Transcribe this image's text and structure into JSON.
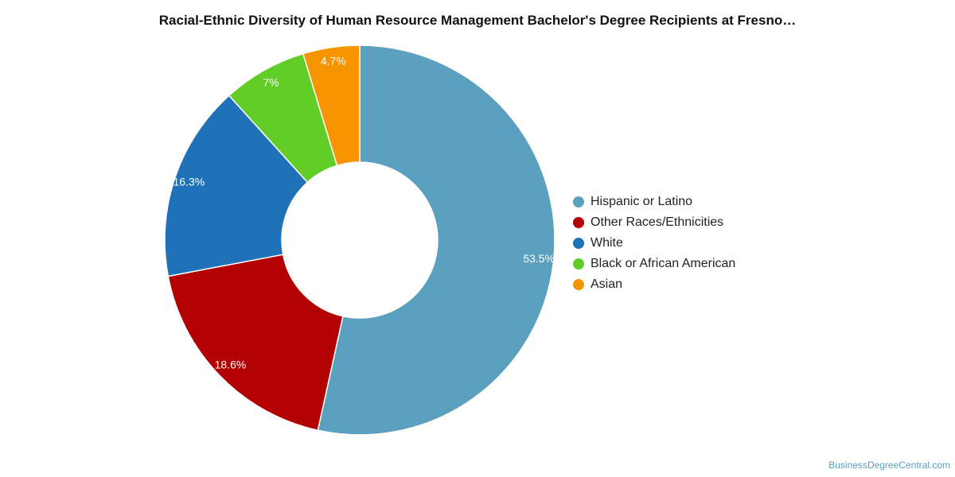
{
  "chart_data": {
    "type": "pie",
    "title": "Racial-Ethnic Diversity of Human Resource Management Bachelor's Degree Recipients at Fresno…",
    "donut": true,
    "categories": [
      "Hispanic or Latino",
      "Other Races/Ethnicities",
      "White",
      "Black or African American",
      "Asian"
    ],
    "values": [
      53.5,
      18.6,
      16.3,
      7,
      4.7
    ],
    "value_labels": [
      "53.5%",
      "18.6%",
      "16.3%",
      "7%",
      "4.7%"
    ],
    "colors": [
      "#5ba1bf",
      "#b30000",
      "#1f72b8",
      "#62cd26",
      "#f79500"
    ],
    "legend_position": "right"
  },
  "watermark": "BusinessDegreeCentral.com"
}
